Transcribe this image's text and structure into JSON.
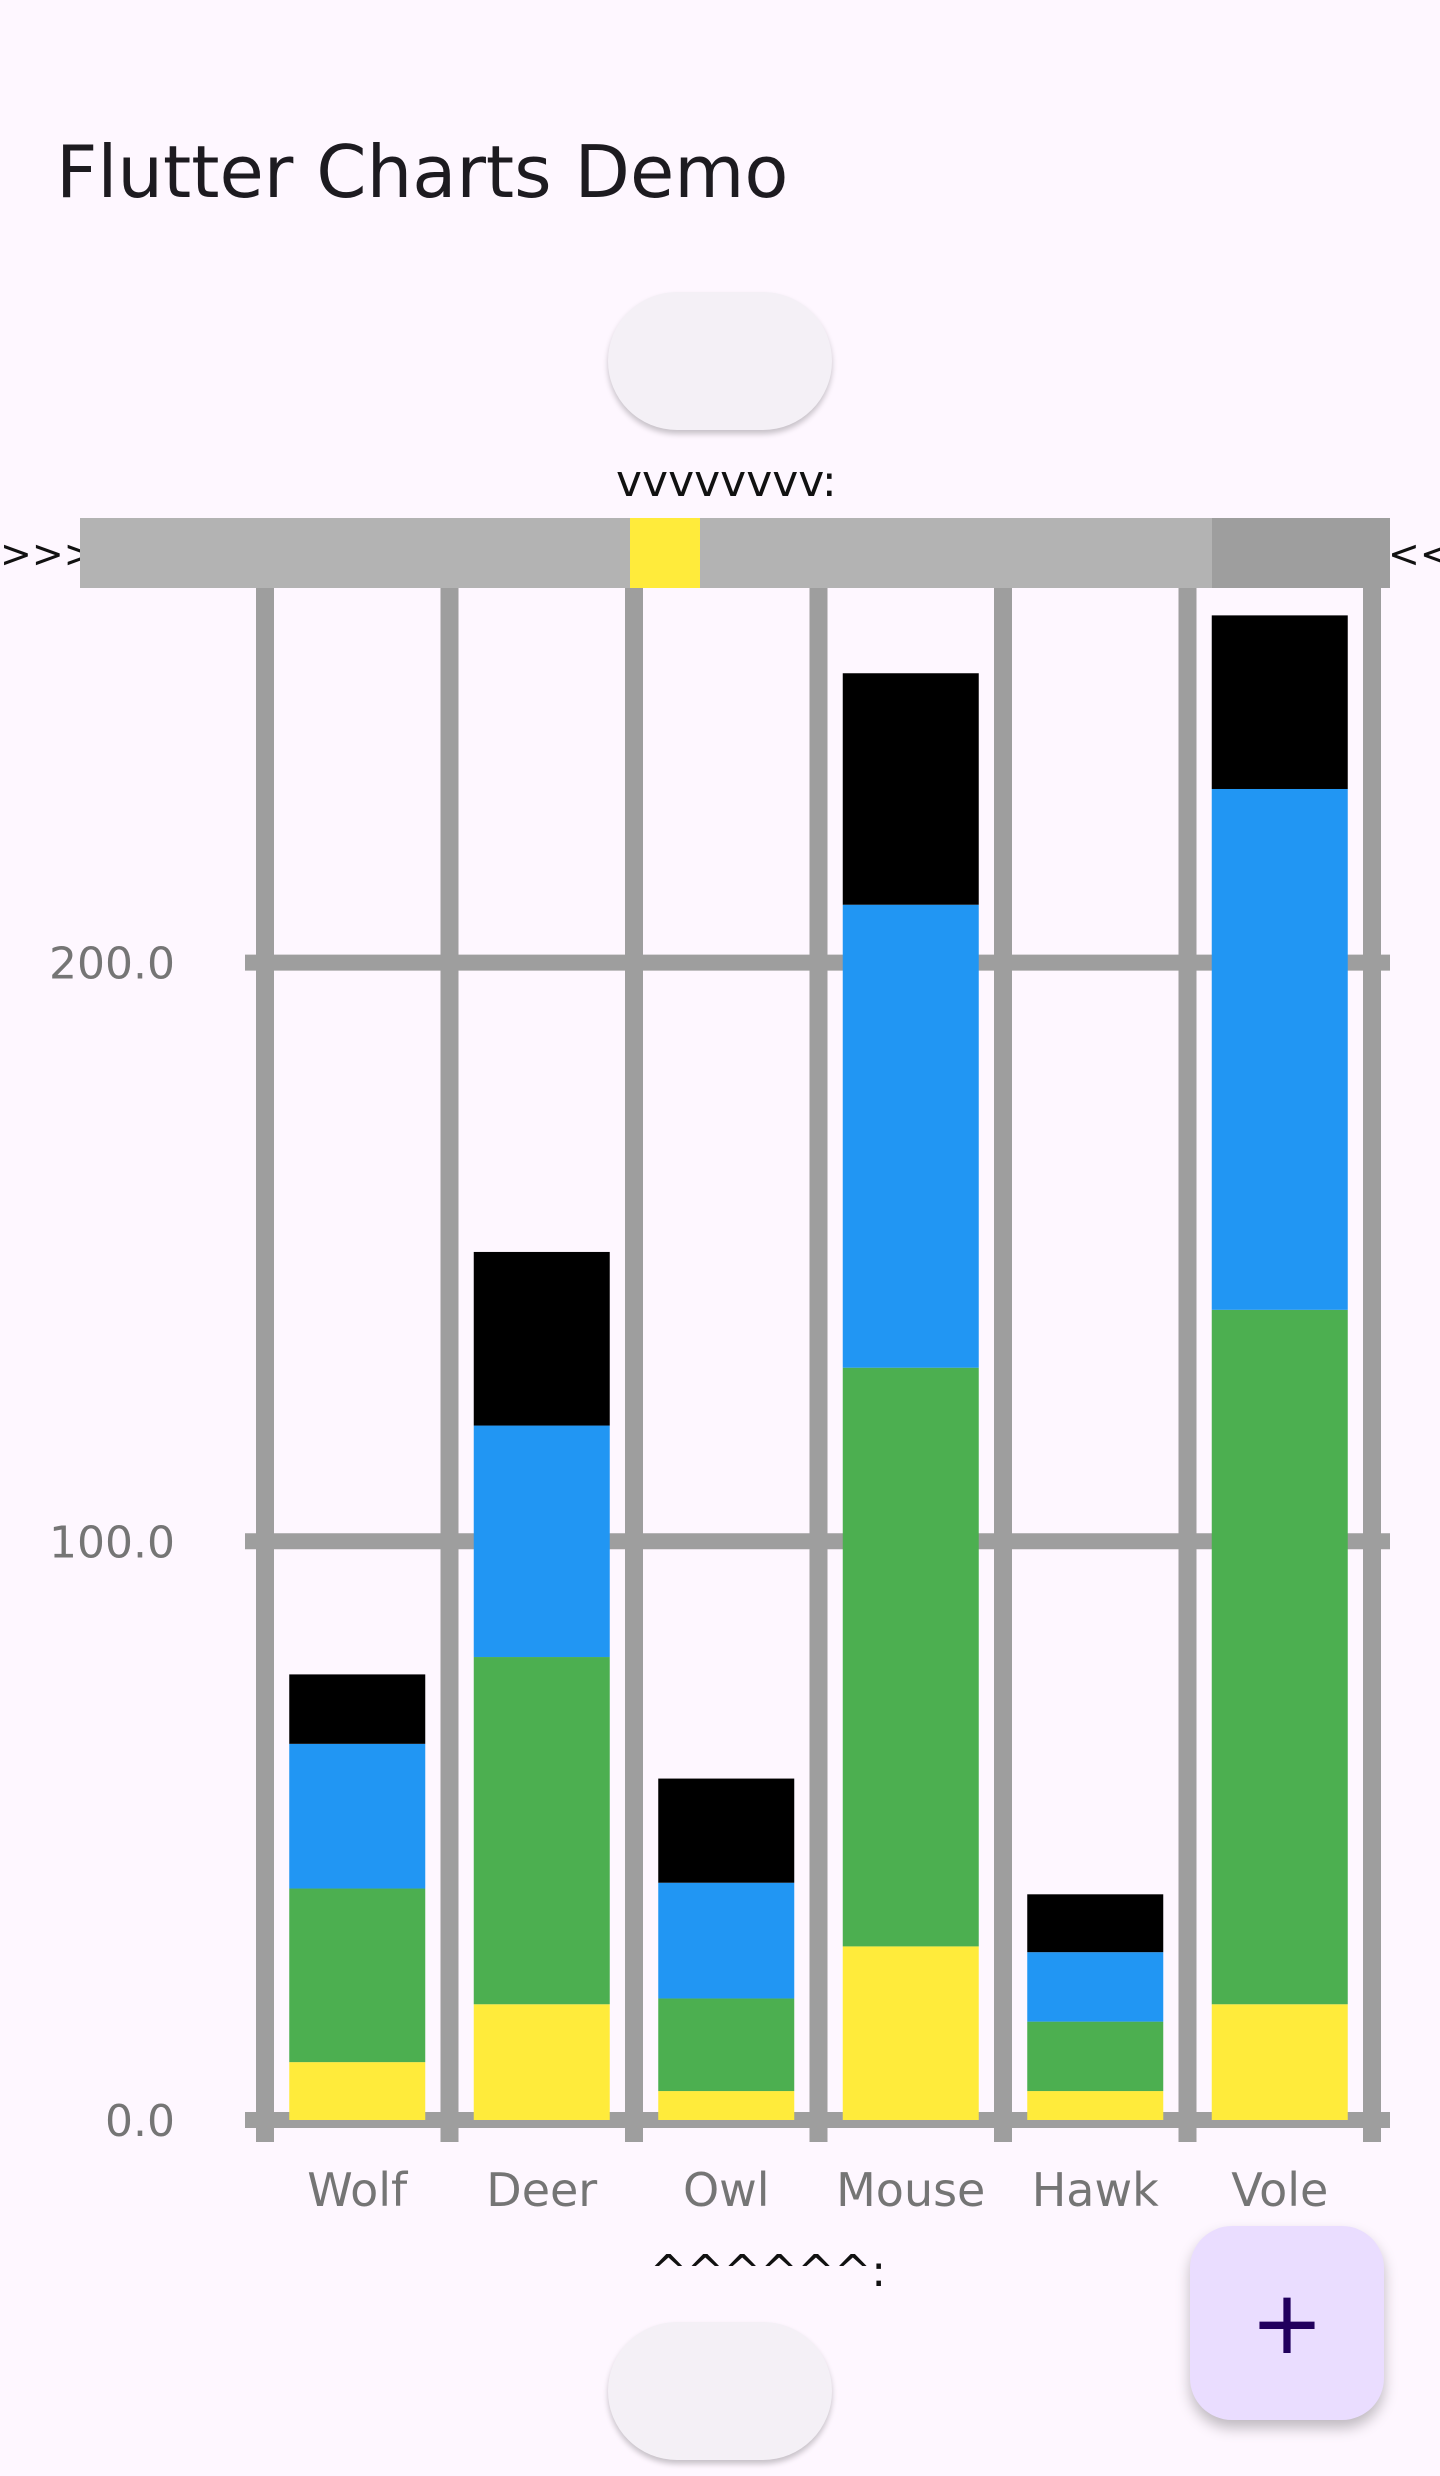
{
  "app_bar": {
    "title": "Flutter Charts Demo"
  },
  "top_caption": "vvvvvvvv:",
  "bottom_caption": "^^^^^^:",
  "left_marker": ">>>",
  "right_marker": "<<",
  "fab": {
    "icon": "add-icon",
    "glyph": "+"
  },
  "colors": {
    "background": "#fef7ff",
    "grid": "#9e9e9e",
    "series": [
      "#ffeb3b",
      "#4caf50",
      "#2196f3",
      "#000000"
    ]
  },
  "chart_data": {
    "type": "bar",
    "stacked": true,
    "categories": [
      "Wolf",
      "Deer",
      "Owl",
      "Mouse",
      "Hawk",
      "Vole"
    ],
    "series": [
      {
        "color": "#ffeb3b",
        "values": [
          10,
          20,
          5,
          30,
          5,
          20
        ]
      },
      {
        "color": "#4caf50",
        "values": [
          30,
          60,
          16,
          100,
          12,
          120
        ]
      },
      {
        "color": "#2196f3",
        "values": [
          25,
          40,
          20,
          80,
          12,
          90
        ]
      },
      {
        "color": "#000000",
        "values": [
          12,
          30,
          18,
          40,
          10,
          30
        ]
      }
    ],
    "y_ticks": [
      "0.0",
      "100.0",
      "200.0"
    ],
    "ylim": [
      0,
      260
    ],
    "grid": true
  }
}
